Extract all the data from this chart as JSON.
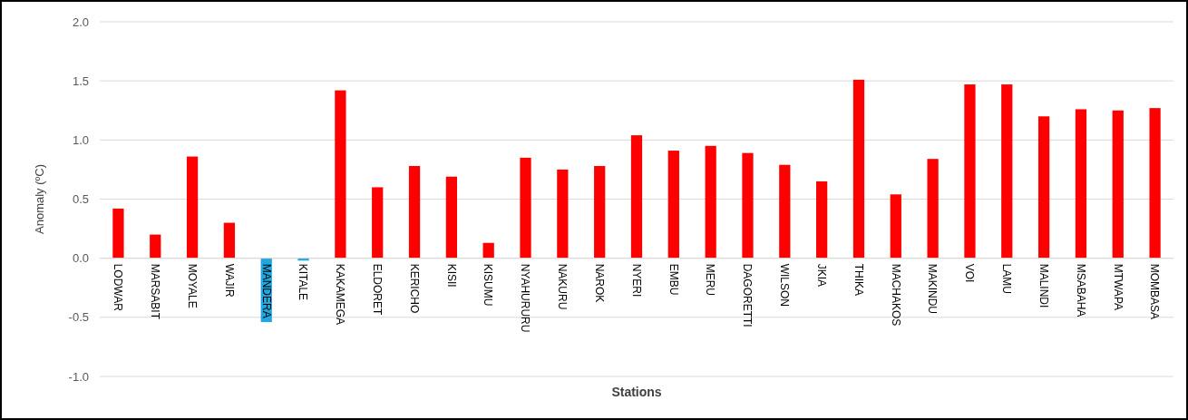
{
  "chart_data": {
    "type": "bar",
    "xlabel": "Stations",
    "ylabel": "Anomaly (ºC)",
    "categories": [
      "LODWAR",
      "MARSABIT",
      "MOYALE",
      "WAJIR",
      "MANDERA",
      "KITALE",
      "KAKAMEGA",
      "ELDORET",
      "KERICHO",
      "KISII",
      "KISUMU",
      "NYAHURURU",
      "NAKURU",
      "NAROK",
      "NYERI",
      "EMBU",
      "MERU",
      "DAGORETTI",
      "WILSON",
      "JKIA",
      "THIKA",
      "MACHAKOS",
      "MAKINDU",
      "VOI",
      "LAMU",
      "MALINDI",
      "MSABAHA",
      "MTWAPA",
      "MOMBASA"
    ],
    "values": [
      0.42,
      0.2,
      0.86,
      0.3,
      -0.54,
      -0.02,
      1.42,
      0.6,
      0.78,
      0.69,
      0.13,
      0.85,
      0.75,
      0.78,
      1.04,
      0.91,
      0.95,
      0.89,
      0.79,
      0.65,
      1.51,
      0.54,
      0.84,
      1.47,
      1.47,
      1.2,
      1.26,
      1.25,
      1.27
    ],
    "colors": [
      "#ff0000",
      "#ff0000",
      "#ff0000",
      "#ff0000",
      "#1fa8e0",
      "#1fa8e0",
      "#ff0000",
      "#ff0000",
      "#ff0000",
      "#ff0000",
      "#ff0000",
      "#ff0000",
      "#ff0000",
      "#ff0000",
      "#ff0000",
      "#ff0000",
      "#ff0000",
      "#ff0000",
      "#ff0000",
      "#ff0000",
      "#ff0000",
      "#ff0000",
      "#ff0000",
      "#ff0000",
      "#ff0000",
      "#ff0000",
      "#ff0000",
      "#ff0000",
      "#ff0000"
    ],
    "ylim": [
      -1.0,
      2.0
    ],
    "yticks": [
      {
        "value": -1.0,
        "label": "-1.0"
      },
      {
        "value": -0.5,
        "label": "-0.5"
      },
      {
        "value": 0,
        "label": "0.0"
      },
      {
        "value": 0.5,
        "label": "0.5"
      },
      {
        "value": 1.0,
        "label": "1.0"
      },
      {
        "value": 1.5,
        "label": "1.5"
      },
      {
        "value": 2.0,
        "label": "2.0"
      }
    ],
    "grid": "y"
  }
}
